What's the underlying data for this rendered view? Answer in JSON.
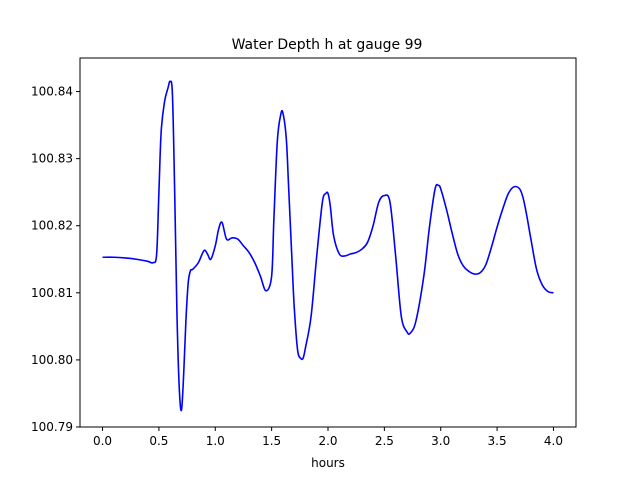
{
  "chart_data": {
    "type": "line",
    "title": "Water Depth h at gauge 99",
    "xlabel": "hours",
    "ylabel": "",
    "xlim": [
      -0.2,
      4.2
    ],
    "ylim": [
      100.79,
      100.845
    ],
    "xticks": [
      "0.0",
      "0.5",
      "1.0",
      "1.5",
      "2.0",
      "2.5",
      "3.0",
      "3.5",
      "4.0"
    ],
    "yticks": [
      "100.79",
      "100.80",
      "100.81",
      "100.82",
      "100.83",
      "100.84"
    ],
    "grid": false,
    "series": [
      {
        "color": "#0000ff",
        "x": [
          0.0,
          0.1,
          0.2,
          0.3,
          0.4,
          0.45,
          0.48,
          0.5,
          0.52,
          0.55,
          0.58,
          0.6,
          0.62,
          0.64,
          0.66,
          0.68,
          0.7,
          0.72,
          0.74,
          0.76,
          0.78,
          0.8,
          0.85,
          0.9,
          0.93,
          0.96,
          1.0,
          1.03,
          1.06,
          1.1,
          1.15,
          1.2,
          1.25,
          1.3,
          1.35,
          1.4,
          1.45,
          1.5,
          1.52,
          1.55,
          1.58,
          1.6,
          1.63,
          1.65,
          1.68,
          1.7,
          1.73,
          1.76,
          1.78,
          1.8,
          1.85,
          1.9,
          1.95,
          1.98,
          2.0,
          2.02,
          2.05,
          2.1,
          2.15,
          2.2,
          2.25,
          2.3,
          2.35,
          2.4,
          2.45,
          2.5,
          2.55,
          2.6,
          2.65,
          2.7,
          2.73,
          2.78,
          2.85,
          2.9,
          2.95,
          2.98,
          3.0,
          3.05,
          3.1,
          3.15,
          3.2,
          3.25,
          3.3,
          3.35,
          3.4,
          3.45,
          3.5,
          3.55,
          3.6,
          3.65,
          3.7,
          3.73,
          3.76,
          3.8,
          3.85,
          3.9,
          3.95,
          4.0
        ],
        "y": [
          100.8153,
          100.8153,
          100.8152,
          100.815,
          100.8147,
          100.8145,
          100.8158,
          100.825,
          100.834,
          100.8385,
          100.8405,
          100.8415,
          100.8395,
          100.825,
          100.807,
          100.796,
          100.7925,
          100.798,
          100.806,
          100.8115,
          100.8133,
          100.8135,
          100.8145,
          100.8163,
          100.8158,
          100.815,
          100.817,
          100.8195,
          100.8205,
          100.818,
          100.8182,
          100.818,
          100.817,
          100.816,
          100.8145,
          100.8125,
          100.8103,
          100.8125,
          100.821,
          100.8325,
          100.8365,
          100.8368,
          100.833,
          100.826,
          100.815,
          100.808,
          100.8015,
          100.8002,
          100.8003,
          100.8018,
          100.8065,
          100.8155,
          100.8235,
          100.8248,
          100.8248,
          100.823,
          100.8185,
          100.8158,
          100.8155,
          100.8158,
          100.816,
          100.8165,
          100.8175,
          100.82,
          100.8235,
          100.8245,
          100.8235,
          100.8155,
          100.8065,
          100.8042,
          100.804,
          100.8058,
          100.8125,
          100.8198,
          100.8255,
          100.826,
          100.8255,
          100.8225,
          100.819,
          100.8158,
          100.814,
          100.8132,
          100.8128,
          100.813,
          100.8142,
          100.8168,
          100.8198,
          100.8225,
          100.8248,
          100.8258,
          100.8255,
          100.8242,
          100.8218,
          100.818,
          100.8135,
          100.8112,
          100.8102,
          100.81
        ]
      }
    ]
  }
}
